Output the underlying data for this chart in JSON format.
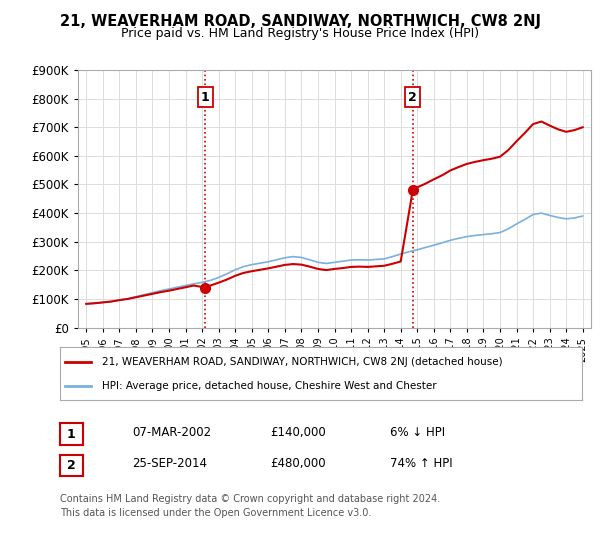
{
  "title": "21, WEAVERHAM ROAD, SANDIWAY, NORTHWICH, CW8 2NJ",
  "subtitle": "Price paid vs. HM Land Registry's House Price Index (HPI)",
  "ylim": [
    0,
    900000
  ],
  "xlim_start": 1994.5,
  "xlim_end": 2025.5,
  "sale1_x": 2002.18,
  "sale1_y": 140000,
  "sale1_label": "1",
  "sale1_date": "07-MAR-2002",
  "sale1_price": "£140,000",
  "sale1_hpi": "6% ↓ HPI",
  "sale2_x": 2014.73,
  "sale2_y": 480000,
  "sale2_label": "2",
  "sale2_date": "25-SEP-2014",
  "sale2_price": "£480,000",
  "sale2_hpi": "74% ↑ HPI",
  "line_color_red": "#cc0000",
  "line_color_blue": "#7ab0dc",
  "vline_color": "#cc0000",
  "legend_label_red": "21, WEAVERHAM ROAD, SANDIWAY, NORTHWICH, CW8 2NJ (detached house)",
  "legend_label_blue": "HPI: Average price, detached house, Cheshire West and Chester",
  "footnote_line1": "Contains HM Land Registry data © Crown copyright and database right 2024.",
  "footnote_line2": "This data is licensed under the Open Government Licence v3.0.",
  "background_color": "#ffffff",
  "grid_color": "#dddddd",
  "years_hpi": [
    1995,
    1995.5,
    1996,
    1996.5,
    1997,
    1997.5,
    1998,
    1998.5,
    1999,
    1999.5,
    2000,
    2000.5,
    2001,
    2001.5,
    2002,
    2002.5,
    2003,
    2003.5,
    2004,
    2004.5,
    2005,
    2005.5,
    2006,
    2006.5,
    2007,
    2007.5,
    2008,
    2008.5,
    2009,
    2009.5,
    2010,
    2010.5,
    2011,
    2011.5,
    2012,
    2012.5,
    2013,
    2013.5,
    2014,
    2014.5,
    2015,
    2015.5,
    2016,
    2016.5,
    2017,
    2017.5,
    2018,
    2018.5,
    2019,
    2019.5,
    2020,
    2020.5,
    2021,
    2021.5,
    2022,
    2022.5,
    2023,
    2023.5,
    2024,
    2024.5,
    2025
  ],
  "hpi_values": [
    83000,
    85000,
    88000,
    91000,
    96000,
    101000,
    108000,
    115000,
    122000,
    129000,
    135000,
    141000,
    147000,
    153000,
    158000,
    165000,
    175000,
    188000,
    202000,
    213000,
    220000,
    225000,
    230000,
    237000,
    244000,
    248000,
    245000,
    237000,
    228000,
    224000,
    228000,
    232000,
    236000,
    237000,
    236000,
    238000,
    240000,
    248000,
    257000,
    265000,
    272000,
    280000,
    288000,
    296000,
    305000,
    312000,
    318000,
    322000,
    325000,
    328000,
    332000,
    345000,
    362000,
    378000,
    395000,
    400000,
    392000,
    385000,
    380000,
    383000,
    390000
  ],
  "red_years_1": [
    1995,
    1995.5,
    1996,
    1996.5,
    1997,
    1997.5,
    1998,
    1998.5,
    1999,
    1999.5,
    2000,
    2000.5,
    2001,
    2001.5,
    2002.18
  ],
  "red_vals_1": [
    83000,
    85000,
    88000,
    91000,
    96000,
    100000,
    106000,
    112000,
    118000,
    124000,
    129000,
    135000,
    141000,
    147000,
    140000
  ],
  "red_years_2": [
    2002.18,
    2002.5,
    2003,
    2003.5,
    2004,
    2004.5,
    2005,
    2005.5,
    2006,
    2006.5,
    2007,
    2007.5,
    2008,
    2008.5,
    2009,
    2009.5,
    2010,
    2010.5,
    2011,
    2011.5,
    2012,
    2012.5,
    2013,
    2013.5,
    2014,
    2014.73
  ],
  "red_vals_2": [
    140000,
    147000,
    157000,
    168000,
    181000,
    191000,
    197000,
    202000,
    207000,
    213000,
    219000,
    222000,
    220000,
    213000,
    205000,
    201000,
    205000,
    208000,
    212000,
    213000,
    212000,
    214000,
    216000,
    223000,
    231000,
    480000
  ],
  "red_years_3": [
    2014.73,
    2015,
    2015.5,
    2016,
    2016.5,
    2017,
    2017.5,
    2018,
    2018.5,
    2019,
    2019.5,
    2020,
    2020.5,
    2021,
    2021.5,
    2022,
    2022.5,
    2023,
    2023.5,
    2024,
    2024.5,
    2025
  ],
  "red_vals_3": [
    480000,
    490000,
    503000,
    518000,
    532000,
    549000,
    561000,
    572000,
    579000,
    585000,
    590000,
    597000,
    620000,
    651000,
    680000,
    711000,
    720000,
    706000,
    693000,
    684000,
    690000,
    700000
  ]
}
